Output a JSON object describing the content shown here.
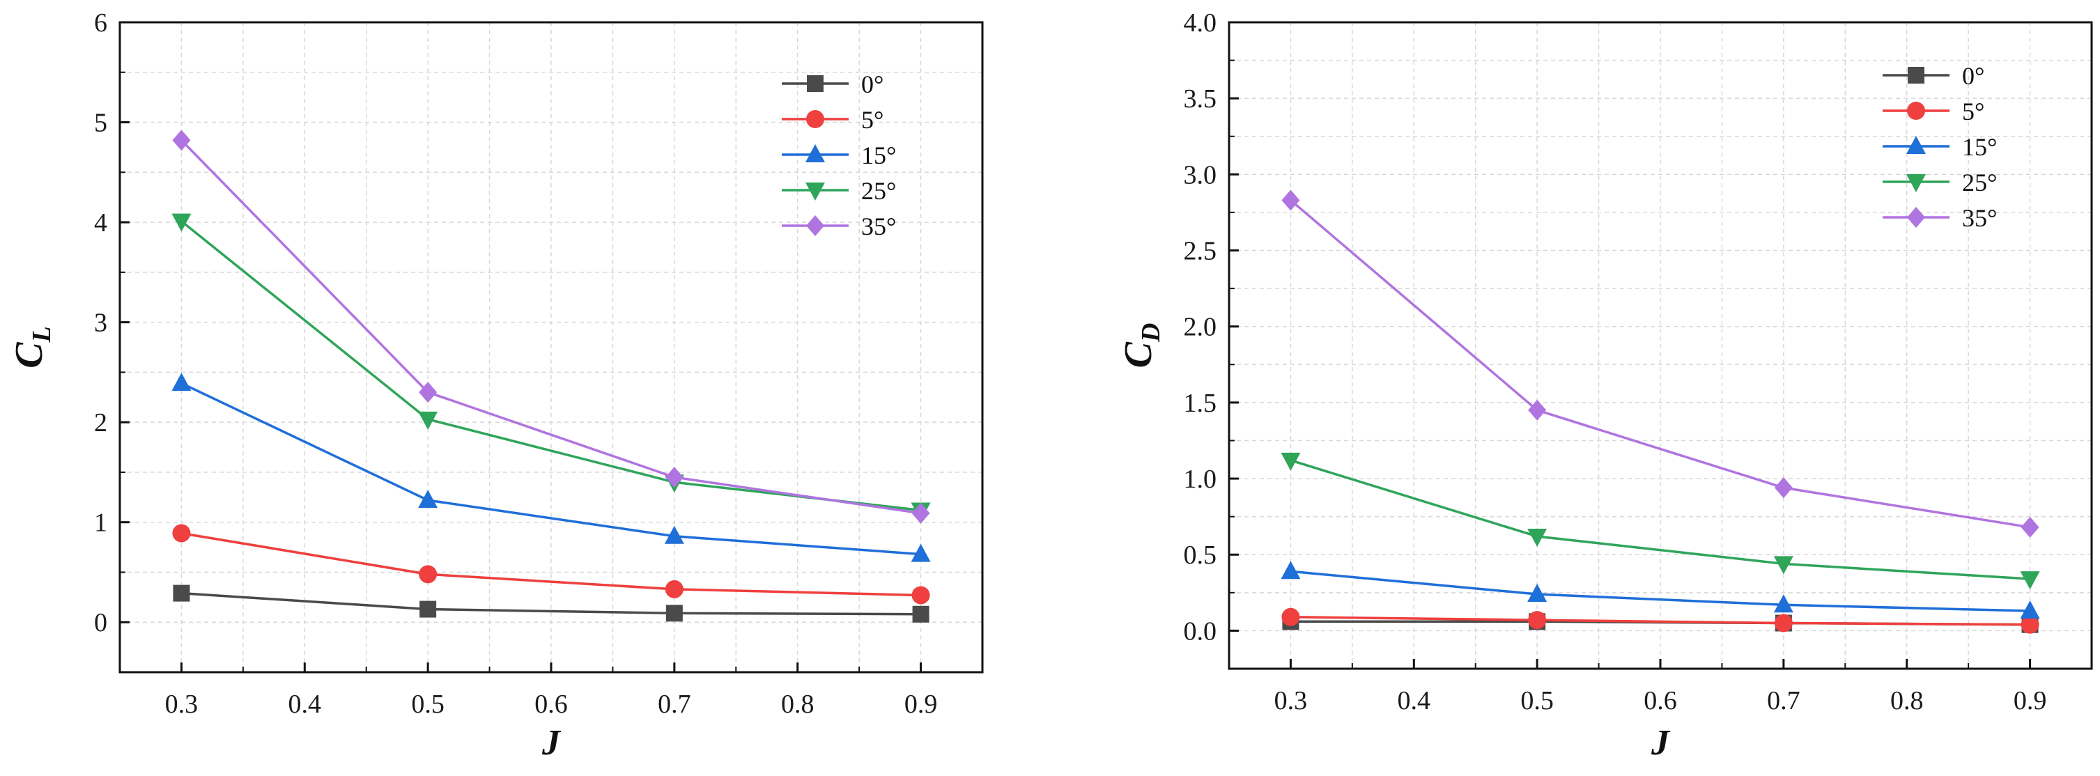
{
  "chart_data": [
    {
      "type": "line",
      "xlabel": "J",
      "ylabel": {
        "main": "C",
        "sub": "L"
      },
      "x": [
        0.3,
        0.5,
        0.7,
        0.9
      ],
      "xlim": [
        0.25,
        0.95
      ],
      "ylim": [
        -0.5,
        6
      ],
      "xticks": [
        "0.3",
        "0.4",
        "0.5",
        "0.6",
        "0.7",
        "0.8",
        "0.9"
      ],
      "yticks": [
        "0",
        "1",
        "2",
        "3",
        "4",
        "5",
        "6"
      ],
      "grid": "dashed",
      "legend_position": "top-right",
      "series": [
        {
          "name": "0°",
          "marker": "square",
          "color": "#4a4a4a",
          "values": [
            0.29,
            0.13,
            0.09,
            0.08
          ]
        },
        {
          "name": "5°",
          "marker": "circle",
          "color": "#ef3f3f",
          "values": [
            0.89,
            0.48,
            0.33,
            0.27
          ]
        },
        {
          "name": "15°",
          "marker": "triangle-up",
          "color": "#1f6fd9",
          "values": [
            2.39,
            1.22,
            0.86,
            0.68
          ]
        },
        {
          "name": "25°",
          "marker": "triangle-down",
          "color": "#2fa55a",
          "values": [
            4.01,
            2.03,
            1.4,
            1.12
          ]
        },
        {
          "name": "35°",
          "marker": "diamond",
          "color": "#b074e0",
          "values": [
            4.82,
            2.3,
            1.45,
            1.09
          ]
        }
      ]
    },
    {
      "type": "line",
      "xlabel": "J",
      "ylabel": {
        "main": "C",
        "sub": "D"
      },
      "x": [
        0.3,
        0.5,
        0.7,
        0.9
      ],
      "xlim": [
        0.25,
        0.95
      ],
      "ylim": [
        -0.25,
        4.0
      ],
      "xticks": [
        "0.3",
        "0.4",
        "0.5",
        "0.6",
        "0.7",
        "0.8",
        "0.9"
      ],
      "yticks": [
        "0.0",
        "0.5",
        "1.0",
        "1.5",
        "2.0",
        "2.5",
        "3.0",
        "3.5",
        "4.0"
      ],
      "grid": "dashed",
      "legend_position": "top-right",
      "series": [
        {
          "name": "0°",
          "marker": "square",
          "color": "#4a4a4a",
          "values": [
            0.06,
            0.06,
            0.05,
            0.04
          ]
        },
        {
          "name": "5°",
          "marker": "circle",
          "color": "#ef3f3f",
          "values": [
            0.09,
            0.07,
            0.05,
            0.04
          ]
        },
        {
          "name": "15°",
          "marker": "triangle-up",
          "color": "#1f6fd9",
          "values": [
            0.39,
            0.24,
            0.17,
            0.13
          ]
        },
        {
          "name": "25°",
          "marker": "triangle-down",
          "color": "#2fa55a",
          "values": [
            1.12,
            0.62,
            0.44,
            0.34
          ]
        },
        {
          "name": "35°",
          "marker": "diamond",
          "color": "#b074e0",
          "values": [
            2.83,
            1.45,
            0.94,
            0.68
          ]
        }
      ]
    }
  ]
}
